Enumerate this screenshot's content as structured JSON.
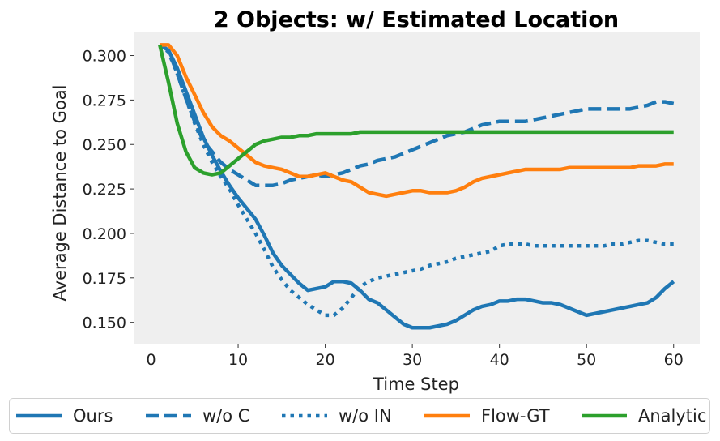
{
  "chart_data": {
    "type": "line",
    "title": "2 Objects: w/ Estimated Location",
    "xlabel": "Time Step",
    "ylabel": "Average Distance to Goal",
    "xlim": [
      -2,
      63
    ],
    "ylim": [
      0.138,
      0.313
    ],
    "xticks": [
      0,
      10,
      20,
      30,
      40,
      50,
      60
    ],
    "yticks": [
      0.15,
      0.175,
      0.2,
      0.225,
      0.25,
      0.275,
      0.3
    ],
    "ytick_labels": [
      "0.150",
      "0.175",
      "0.200",
      "0.225",
      "0.250",
      "0.275",
      "0.300"
    ],
    "xtick_labels": [
      "0",
      "10",
      "20",
      "30",
      "40",
      "50",
      "60"
    ],
    "grid": false,
    "legend_position": "bottom",
    "series": [
      {
        "name": "Ours",
        "color": "#1f77b4",
        "style": "solid",
        "x": [
          1,
          2,
          3,
          4,
          5,
          6,
          7,
          8,
          9,
          10,
          11,
          12,
          13,
          14,
          15,
          16,
          17,
          18,
          19,
          20,
          21,
          22,
          23,
          24,
          25,
          26,
          27,
          28,
          29,
          30,
          31,
          32,
          33,
          34,
          35,
          36,
          37,
          38,
          39,
          40,
          41,
          42,
          43,
          44,
          45,
          46,
          47,
          48,
          49,
          50,
          51,
          52,
          53,
          54,
          55,
          56,
          57,
          58,
          59,
          60
        ],
        "values": [
          0.306,
          0.303,
          0.293,
          0.28,
          0.267,
          0.254,
          0.244,
          0.235,
          0.227,
          0.22,
          0.214,
          0.208,
          0.199,
          0.189,
          0.182,
          0.177,
          0.172,
          0.168,
          0.169,
          0.17,
          0.173,
          0.173,
          0.172,
          0.168,
          0.163,
          0.161,
          0.157,
          0.153,
          0.149,
          0.147,
          0.147,
          0.147,
          0.148,
          0.149,
          0.151,
          0.154,
          0.157,
          0.159,
          0.16,
          0.162,
          0.162,
          0.163,
          0.163,
          0.162,
          0.161,
          0.161,
          0.16,
          0.158,
          0.156,
          0.154,
          0.155,
          0.156,
          0.157,
          0.158,
          0.159,
          0.16,
          0.161,
          0.164,
          0.169,
          0.173
        ]
      },
      {
        "name": "w/o C",
        "color": "#1f77b4",
        "style": "dashed",
        "x": [
          1,
          2,
          3,
          4,
          5,
          6,
          7,
          8,
          9,
          10,
          11,
          12,
          13,
          14,
          15,
          16,
          17,
          18,
          19,
          20,
          21,
          22,
          23,
          24,
          25,
          26,
          27,
          28,
          29,
          30,
          31,
          32,
          33,
          34,
          35,
          36,
          37,
          38,
          39,
          40,
          41,
          42,
          43,
          44,
          45,
          46,
          47,
          48,
          49,
          50,
          51,
          52,
          53,
          54,
          55,
          56,
          57,
          58,
          59,
          60
        ],
        "values": [
          0.306,
          0.303,
          0.29,
          0.276,
          0.263,
          0.252,
          0.246,
          0.24,
          0.236,
          0.233,
          0.23,
          0.227,
          0.227,
          0.227,
          0.228,
          0.23,
          0.231,
          0.232,
          0.233,
          0.232,
          0.233,
          0.234,
          0.236,
          0.238,
          0.239,
          0.241,
          0.242,
          0.243,
          0.245,
          0.247,
          0.249,
          0.251,
          0.253,
          0.255,
          0.256,
          0.257,
          0.259,
          0.261,
          0.262,
          0.263,
          0.263,
          0.263,
          0.263,
          0.264,
          0.265,
          0.266,
          0.267,
          0.268,
          0.269,
          0.27,
          0.27,
          0.27,
          0.27,
          0.27,
          0.27,
          0.271,
          0.272,
          0.274,
          0.274,
          0.273
        ]
      },
      {
        "name": "w/o IN",
        "color": "#1f77b4",
        "style": "dotted",
        "x": [
          1,
          2,
          3,
          4,
          5,
          6,
          7,
          8,
          9,
          10,
          11,
          12,
          13,
          14,
          15,
          16,
          17,
          18,
          19,
          20,
          21,
          22,
          23,
          24,
          25,
          26,
          27,
          28,
          29,
          30,
          31,
          32,
          33,
          34,
          35,
          36,
          37,
          38,
          39,
          40,
          41,
          42,
          43,
          44,
          45,
          46,
          47,
          48,
          49,
          50,
          51,
          52,
          53,
          54,
          55,
          56,
          57,
          58,
          59,
          60
        ],
        "values": [
          0.306,
          0.302,
          0.29,
          0.276,
          0.262,
          0.25,
          0.24,
          0.232,
          0.225,
          0.216,
          0.208,
          0.2,
          0.191,
          0.181,
          0.174,
          0.168,
          0.164,
          0.16,
          0.157,
          0.154,
          0.154,
          0.158,
          0.164,
          0.17,
          0.173,
          0.175,
          0.176,
          0.177,
          0.178,
          0.179,
          0.18,
          0.182,
          0.183,
          0.184,
          0.186,
          0.187,
          0.188,
          0.189,
          0.19,
          0.193,
          0.194,
          0.194,
          0.194,
          0.193,
          0.193,
          0.193,
          0.193,
          0.193,
          0.193,
          0.193,
          0.193,
          0.193,
          0.194,
          0.194,
          0.195,
          0.196,
          0.196,
          0.195,
          0.194,
          0.194
        ]
      },
      {
        "name": "Flow-GT",
        "color": "#ff7f0e",
        "style": "solid",
        "x": [
          1,
          2,
          3,
          4,
          5,
          6,
          7,
          8,
          9,
          10,
          11,
          12,
          13,
          14,
          15,
          16,
          17,
          18,
          19,
          20,
          21,
          22,
          23,
          24,
          25,
          26,
          27,
          28,
          29,
          30,
          31,
          32,
          33,
          34,
          35,
          36,
          37,
          38,
          39,
          40,
          41,
          42,
          43,
          44,
          45,
          46,
          47,
          48,
          49,
          50,
          51,
          52,
          53,
          54,
          55,
          56,
          57,
          58,
          59,
          60
        ],
        "values": [
          0.306,
          0.306,
          0.3,
          0.288,
          0.278,
          0.268,
          0.26,
          0.255,
          0.252,
          0.248,
          0.244,
          0.24,
          0.238,
          0.237,
          0.236,
          0.234,
          0.232,
          0.232,
          0.233,
          0.234,
          0.232,
          0.23,
          0.229,
          0.226,
          0.223,
          0.222,
          0.221,
          0.222,
          0.223,
          0.224,
          0.224,
          0.223,
          0.223,
          0.223,
          0.224,
          0.226,
          0.229,
          0.231,
          0.232,
          0.233,
          0.234,
          0.235,
          0.236,
          0.236,
          0.236,
          0.236,
          0.236,
          0.237,
          0.237,
          0.237,
          0.237,
          0.237,
          0.237,
          0.237,
          0.237,
          0.238,
          0.238,
          0.238,
          0.239,
          0.239
        ]
      },
      {
        "name": "Analytic",
        "color": "#2ca02c",
        "style": "solid",
        "x": [
          1,
          2,
          3,
          4,
          5,
          6,
          7,
          8,
          9,
          10,
          11,
          12,
          13,
          14,
          15,
          16,
          17,
          18,
          19,
          20,
          21,
          22,
          23,
          24,
          25,
          26,
          27,
          28,
          29,
          30,
          31,
          32,
          33,
          34,
          35,
          36,
          37,
          38,
          39,
          40,
          41,
          42,
          43,
          44,
          45,
          46,
          47,
          48,
          49,
          50,
          51,
          52,
          53,
          54,
          55,
          56,
          57,
          58,
          59,
          60
        ],
        "values": [
          0.306,
          0.285,
          0.262,
          0.246,
          0.237,
          0.234,
          0.233,
          0.234,
          0.238,
          0.242,
          0.246,
          0.25,
          0.252,
          0.253,
          0.254,
          0.254,
          0.255,
          0.255,
          0.256,
          0.256,
          0.256,
          0.256,
          0.256,
          0.257,
          0.257,
          0.257,
          0.257,
          0.257,
          0.257,
          0.257,
          0.257,
          0.257,
          0.257,
          0.257,
          0.257,
          0.257,
          0.257,
          0.257,
          0.257,
          0.257,
          0.257,
          0.257,
          0.257,
          0.257,
          0.257,
          0.257,
          0.257,
          0.257,
          0.257,
          0.257,
          0.257,
          0.257,
          0.257,
          0.257,
          0.257,
          0.257,
          0.257,
          0.257,
          0.257,
          0.257
        ]
      }
    ]
  }
}
